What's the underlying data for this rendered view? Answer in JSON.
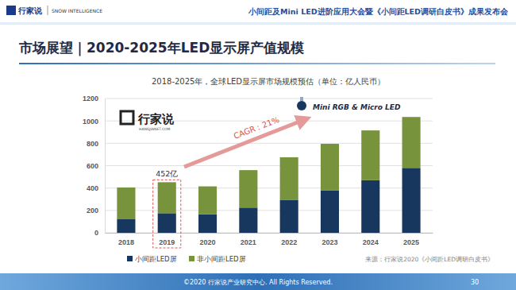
{
  "page": {
    "header": "小间距及Mini LED进阶应用大会暨《小间距LED调研白皮书》成果发布会",
    "logo_left": "行家说",
    "logo_right": "SNOW INTELLIGENCE",
    "slide_title": "市场展望｜2020-2025年LED显示屏产值规模",
    "watermark": "行家说",
    "watermark_sub": "HANGJIANET.COM",
    "source": "来源：行家说2020《小间距LED调研白皮书》",
    "footer": "©2020 行家说产业研究中心. All Rights Reserved.",
    "page_number": "30"
  },
  "chart_data": {
    "type": "bar",
    "stacked": true,
    "title": "2018-2025年，全球LED显示屏市场规模预估（单位：亿人民币）",
    "categories": [
      "2018",
      "2019",
      "2020",
      "2021",
      "2022",
      "2023",
      "2024",
      "2025"
    ],
    "series": [
      {
        "name": "小间距LED屏",
        "color": "#17375e",
        "values": [
          125,
          175,
          165,
          225,
          295,
          380,
          470,
          580
        ]
      },
      {
        "name": "非小间距LED屏",
        "color": "#77933c",
        "values": [
          280,
          277,
          250,
          335,
          380,
          415,
          445,
          455
        ]
      }
    ],
    "ylim": [
      0,
      1200
    ],
    "yticks": [
      0,
      200,
      400,
      600,
      800,
      1000,
      1200
    ],
    "grid": true,
    "legend": "bottom left",
    "data_labels": false,
    "annotations": [
      {
        "text": "452亿",
        "category": "2019"
      },
      {
        "text": "CAGR：21%"
      },
      {
        "text": "Mini RGB & Micro LED"
      }
    ]
  }
}
